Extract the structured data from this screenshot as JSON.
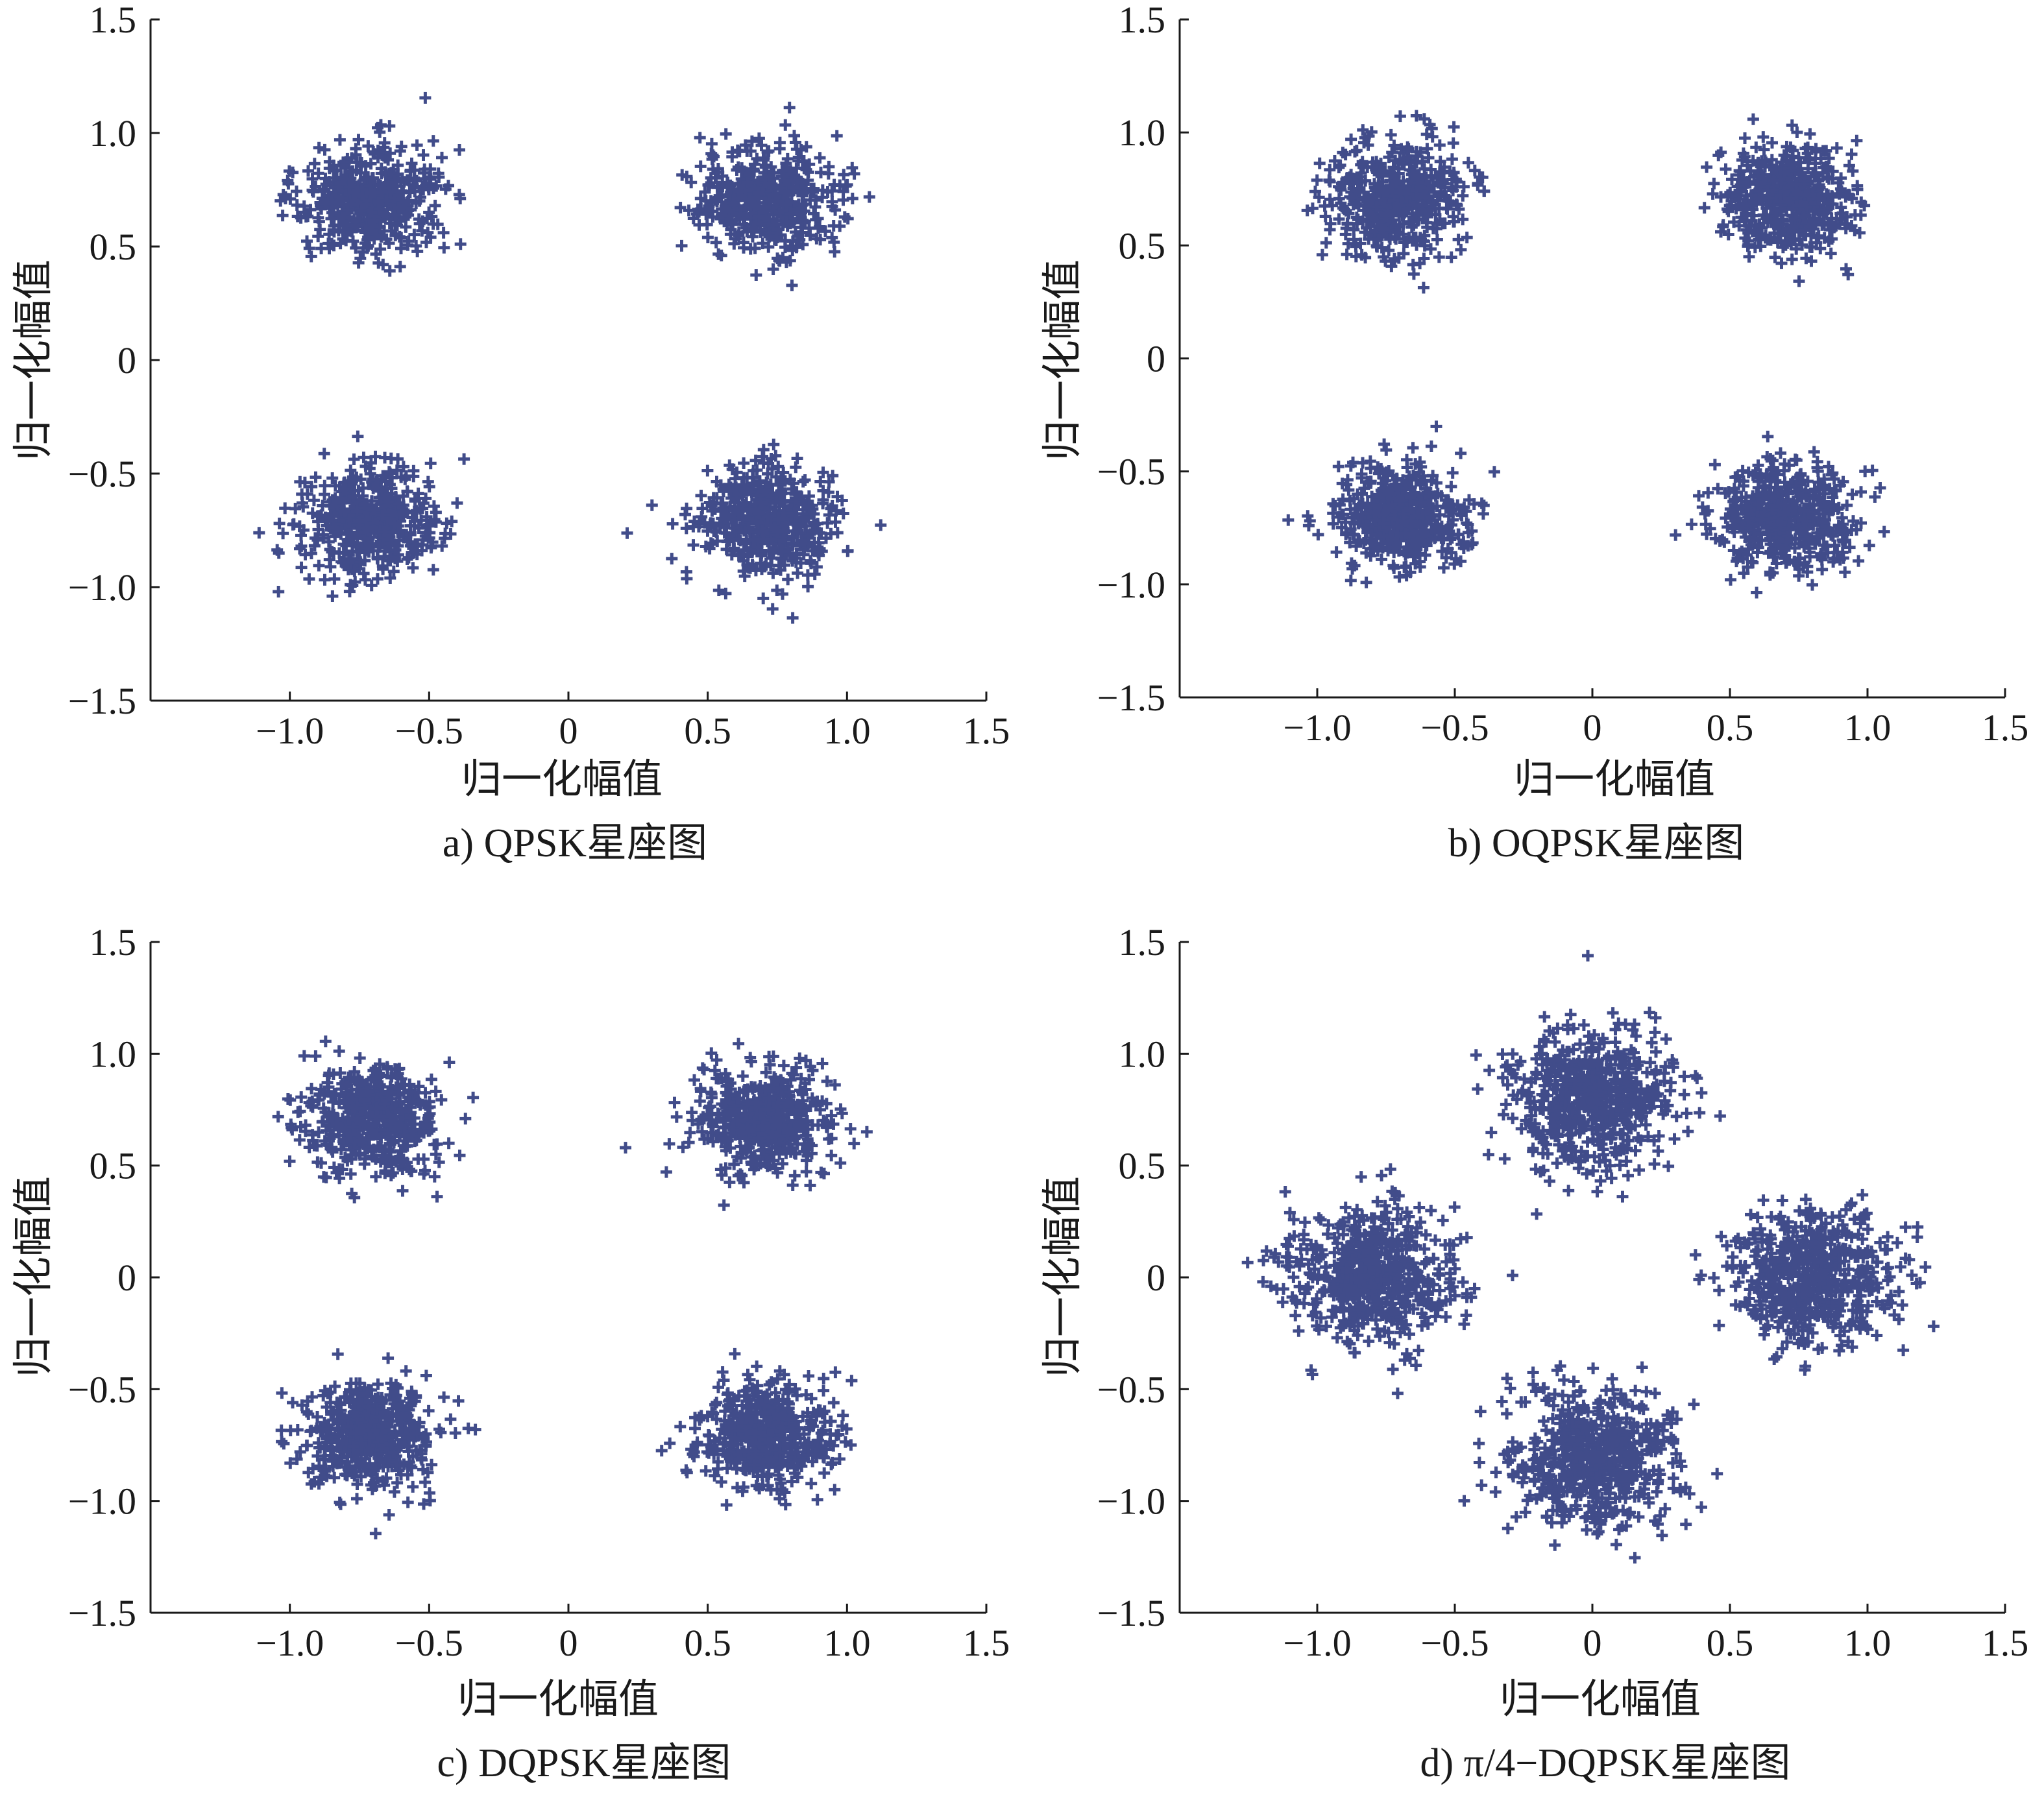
{
  "colors": {
    "points": "#414c8a",
    "axes": "#1a1a1a",
    "background": "#ffffff"
  },
  "chart_data": [
    {
      "type": "scatter",
      "caption": "a) QPSK星座图",
      "xlabel": "归一化幅值",
      "ylabel": "归一化幅值",
      "xlim": [
        -1.5,
        1.5
      ],
      "ylim": [
        -1.5,
        1.5
      ],
      "xticks": [
        -1.0,
        -0.5,
        0,
        0.5,
        1.0,
        1.5
      ],
      "xtick_labels": [
        "−1.0",
        "−0.5",
        "0",
        "0.5",
        "1.0",
        "1.5"
      ],
      "yticks": [
        -1.5,
        -1.0,
        -0.5,
        0,
        0.5,
        1.0,
        1.5
      ],
      "ytick_labels": [
        "−1.5",
        "−1.0",
        "−0.5",
        "0",
        "0.5",
        "1.0",
        "1.5"
      ],
      "marker": "+",
      "grid": false,
      "series": [
        {
          "x": 0.707,
          "y": 0.707,
          "spread": 0.12,
          "count": 500
        },
        {
          "x": -0.707,
          "y": 0.707,
          "spread": 0.12,
          "count": 500
        },
        {
          "x": -0.707,
          "y": -0.707,
          "spread": 0.12,
          "count": 500
        },
        {
          "x": 0.707,
          "y": -0.707,
          "spread": 0.12,
          "count": 500
        }
      ]
    },
    {
      "type": "scatter",
      "caption": "b) OQPSK星座图",
      "xlabel": "归一化幅值",
      "ylabel": "归一化幅值",
      "xlim": [
        -1.5,
        1.5
      ],
      "ylim": [
        -1.5,
        1.5
      ],
      "xticks": [
        -1.0,
        -0.5,
        0,
        0.5,
        1.0,
        1.5
      ],
      "xtick_labels": [
        "−1.0",
        "−0.5",
        "0",
        "0.5",
        "1.0",
        "1.5"
      ],
      "yticks": [
        -1.5,
        -1.0,
        -0.5,
        0,
        0.5,
        1.0,
        1.5
      ],
      "ytick_labels": [
        "−1.5",
        "−1.0",
        "−0.5",
        "0",
        "0.5",
        "1.0",
        "1.5"
      ],
      "marker": "+",
      "grid": false,
      "series": [
        {
          "x": 0.707,
          "y": 0.707,
          "spread": 0.12,
          "count": 500
        },
        {
          "x": -0.707,
          "y": 0.707,
          "spread": 0.12,
          "count": 500
        },
        {
          "x": -0.707,
          "y": -0.707,
          "spread": 0.12,
          "count": 500
        },
        {
          "x": 0.707,
          "y": -0.707,
          "spread": 0.12,
          "count": 500
        }
      ]
    },
    {
      "type": "scatter",
      "caption": "c) DQPSK星座图",
      "xlabel": "归一化幅值",
      "ylabel": "归一化幅值",
      "xlim": [
        -1.5,
        1.5
      ],
      "ylim": [
        -1.5,
        1.5
      ],
      "xticks": [
        -1.0,
        -0.5,
        0,
        0.5,
        1.0,
        1.5
      ],
      "xtick_labels": [
        "−1.0",
        "−0.5",
        "0",
        "0.5",
        "1.0",
        "1.5"
      ],
      "yticks": [
        -1.5,
        -1.0,
        -0.5,
        0,
        0.5,
        1.0,
        1.5
      ],
      "ytick_labels": [
        "−1.5",
        "−1.0",
        "−0.5",
        "0",
        "0.5",
        "1.0",
        "1.5"
      ],
      "marker": "+",
      "grid": false,
      "series": [
        {
          "x": 0.707,
          "y": 0.707,
          "spread": 0.12,
          "count": 500
        },
        {
          "x": -0.707,
          "y": 0.707,
          "spread": 0.12,
          "count": 500
        },
        {
          "x": -0.707,
          "y": -0.707,
          "spread": 0.12,
          "count": 500
        },
        {
          "x": 0.707,
          "y": -0.707,
          "spread": 0.12,
          "count": 500
        }
      ]
    },
    {
      "type": "scatter",
      "caption": "d) π/4−DQPSK星座图",
      "xlabel": "归一化幅值",
      "ylabel": "归一化幅值",
      "xlim": [
        -1.5,
        1.5
      ],
      "ylim": [
        -1.5,
        1.5
      ],
      "xticks": [
        -1.0,
        -0.5,
        0,
        0.5,
        1.0,
        1.5
      ],
      "xtick_labels": [
        "−1.0",
        "−0.5",
        "0",
        "0.5",
        "1.0",
        "1.5"
      ],
      "yticks": [
        -1.5,
        -1.0,
        -0.5,
        0,
        0.5,
        1.0,
        1.5
      ],
      "ytick_labels": [
        "−1.5",
        "−1.0",
        "−0.5",
        "0",
        "0.5",
        "1.0",
        "1.5"
      ],
      "marker": "+",
      "grid": false,
      "series": [
        {
          "x": 0.0,
          "y": 0.8,
          "spread": 0.15,
          "count": 600
        },
        {
          "x": 0.8,
          "y": 0.0,
          "spread": 0.15,
          "count": 600
        },
        {
          "x": 0.0,
          "y": -0.8,
          "spread": 0.15,
          "count": 600
        },
        {
          "x": -0.8,
          "y": 0.0,
          "spread": 0.15,
          "count": 600
        }
      ]
    }
  ]
}
